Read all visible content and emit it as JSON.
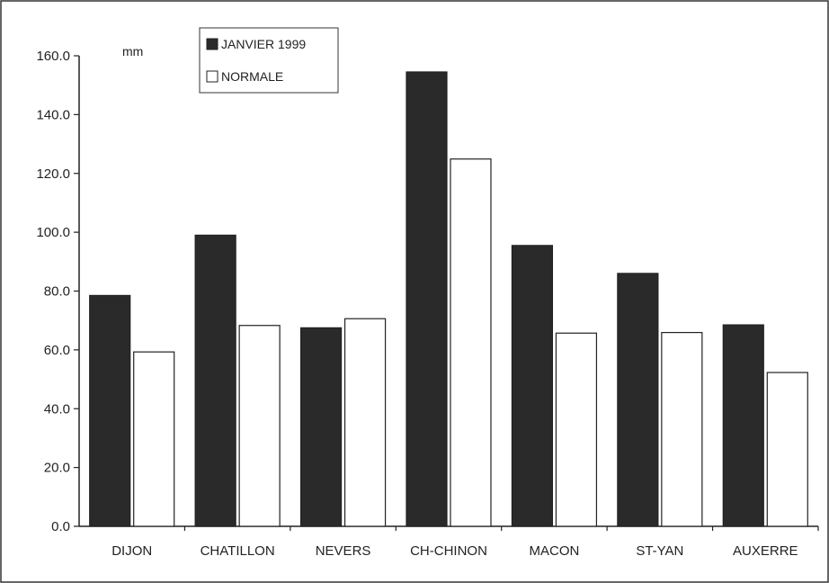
{
  "chart_data": {
    "type": "bar",
    "title": "",
    "xlabel": "",
    "ylabel": "",
    "unit_label": "mm",
    "categories": [
      "DIJON",
      "CHATILLON",
      "NEVERS",
      "CH-CHINON",
      "MACON",
      "ST-YAN",
      "AUXERRE"
    ],
    "series": [
      {
        "name": "JANVIER 1999",
        "color": "#2a2a2a",
        "values": [
          78.5,
          99.0,
          67.5,
          154.5,
          95.5,
          86.0,
          68.5
        ]
      },
      {
        "name": "NORMALE",
        "color": "#ffffff",
        "values": [
          59.3,
          68.3,
          70.6,
          124.9,
          65.7,
          65.9,
          52.3
        ]
      }
    ],
    "ylim": [
      0,
      160
    ],
    "y_ticks": [
      "0.0",
      "20.0",
      "40.0",
      "60.0",
      "80.0",
      "100.0",
      "120.0",
      "140.0",
      "160.0"
    ],
    "grid": false,
    "legend_position": "top-left"
  }
}
